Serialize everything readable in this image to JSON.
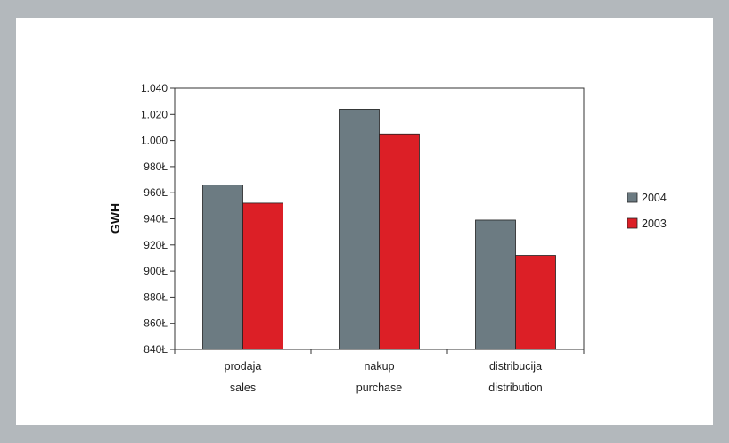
{
  "chart_data": {
    "type": "bar",
    "title": "",
    "xlabel": "",
    "ylabel": "GWH",
    "ylim": [
      840,
      1040
    ],
    "yticks": [
      840,
      860,
      880,
      900,
      920,
      940,
      960,
      980,
      1000,
      1020,
      1040
    ],
    "ytick_labels": [
      "840Ł",
      "860Ł",
      "880Ł",
      "900Ł",
      "920Ł",
      "940Ł",
      "960Ł",
      "980Ł",
      "1.000",
      "1.020",
      "1.040"
    ],
    "categories": [
      {
        "line1": "prodaja",
        "line2": "sales"
      },
      {
        "line1": "nakup",
        "line2": "purchase"
      },
      {
        "line1": "distribucija",
        "line2": "distribution"
      }
    ],
    "series": [
      {
        "name": "2004",
        "color": "#6c7b82",
        "values": [
          966,
          1024,
          939
        ]
      },
      {
        "name": "2003",
        "color": "#dc1f26",
        "values": [
          952,
          1005,
          912
        ]
      }
    ],
    "grid": false,
    "legend_position": "right"
  }
}
